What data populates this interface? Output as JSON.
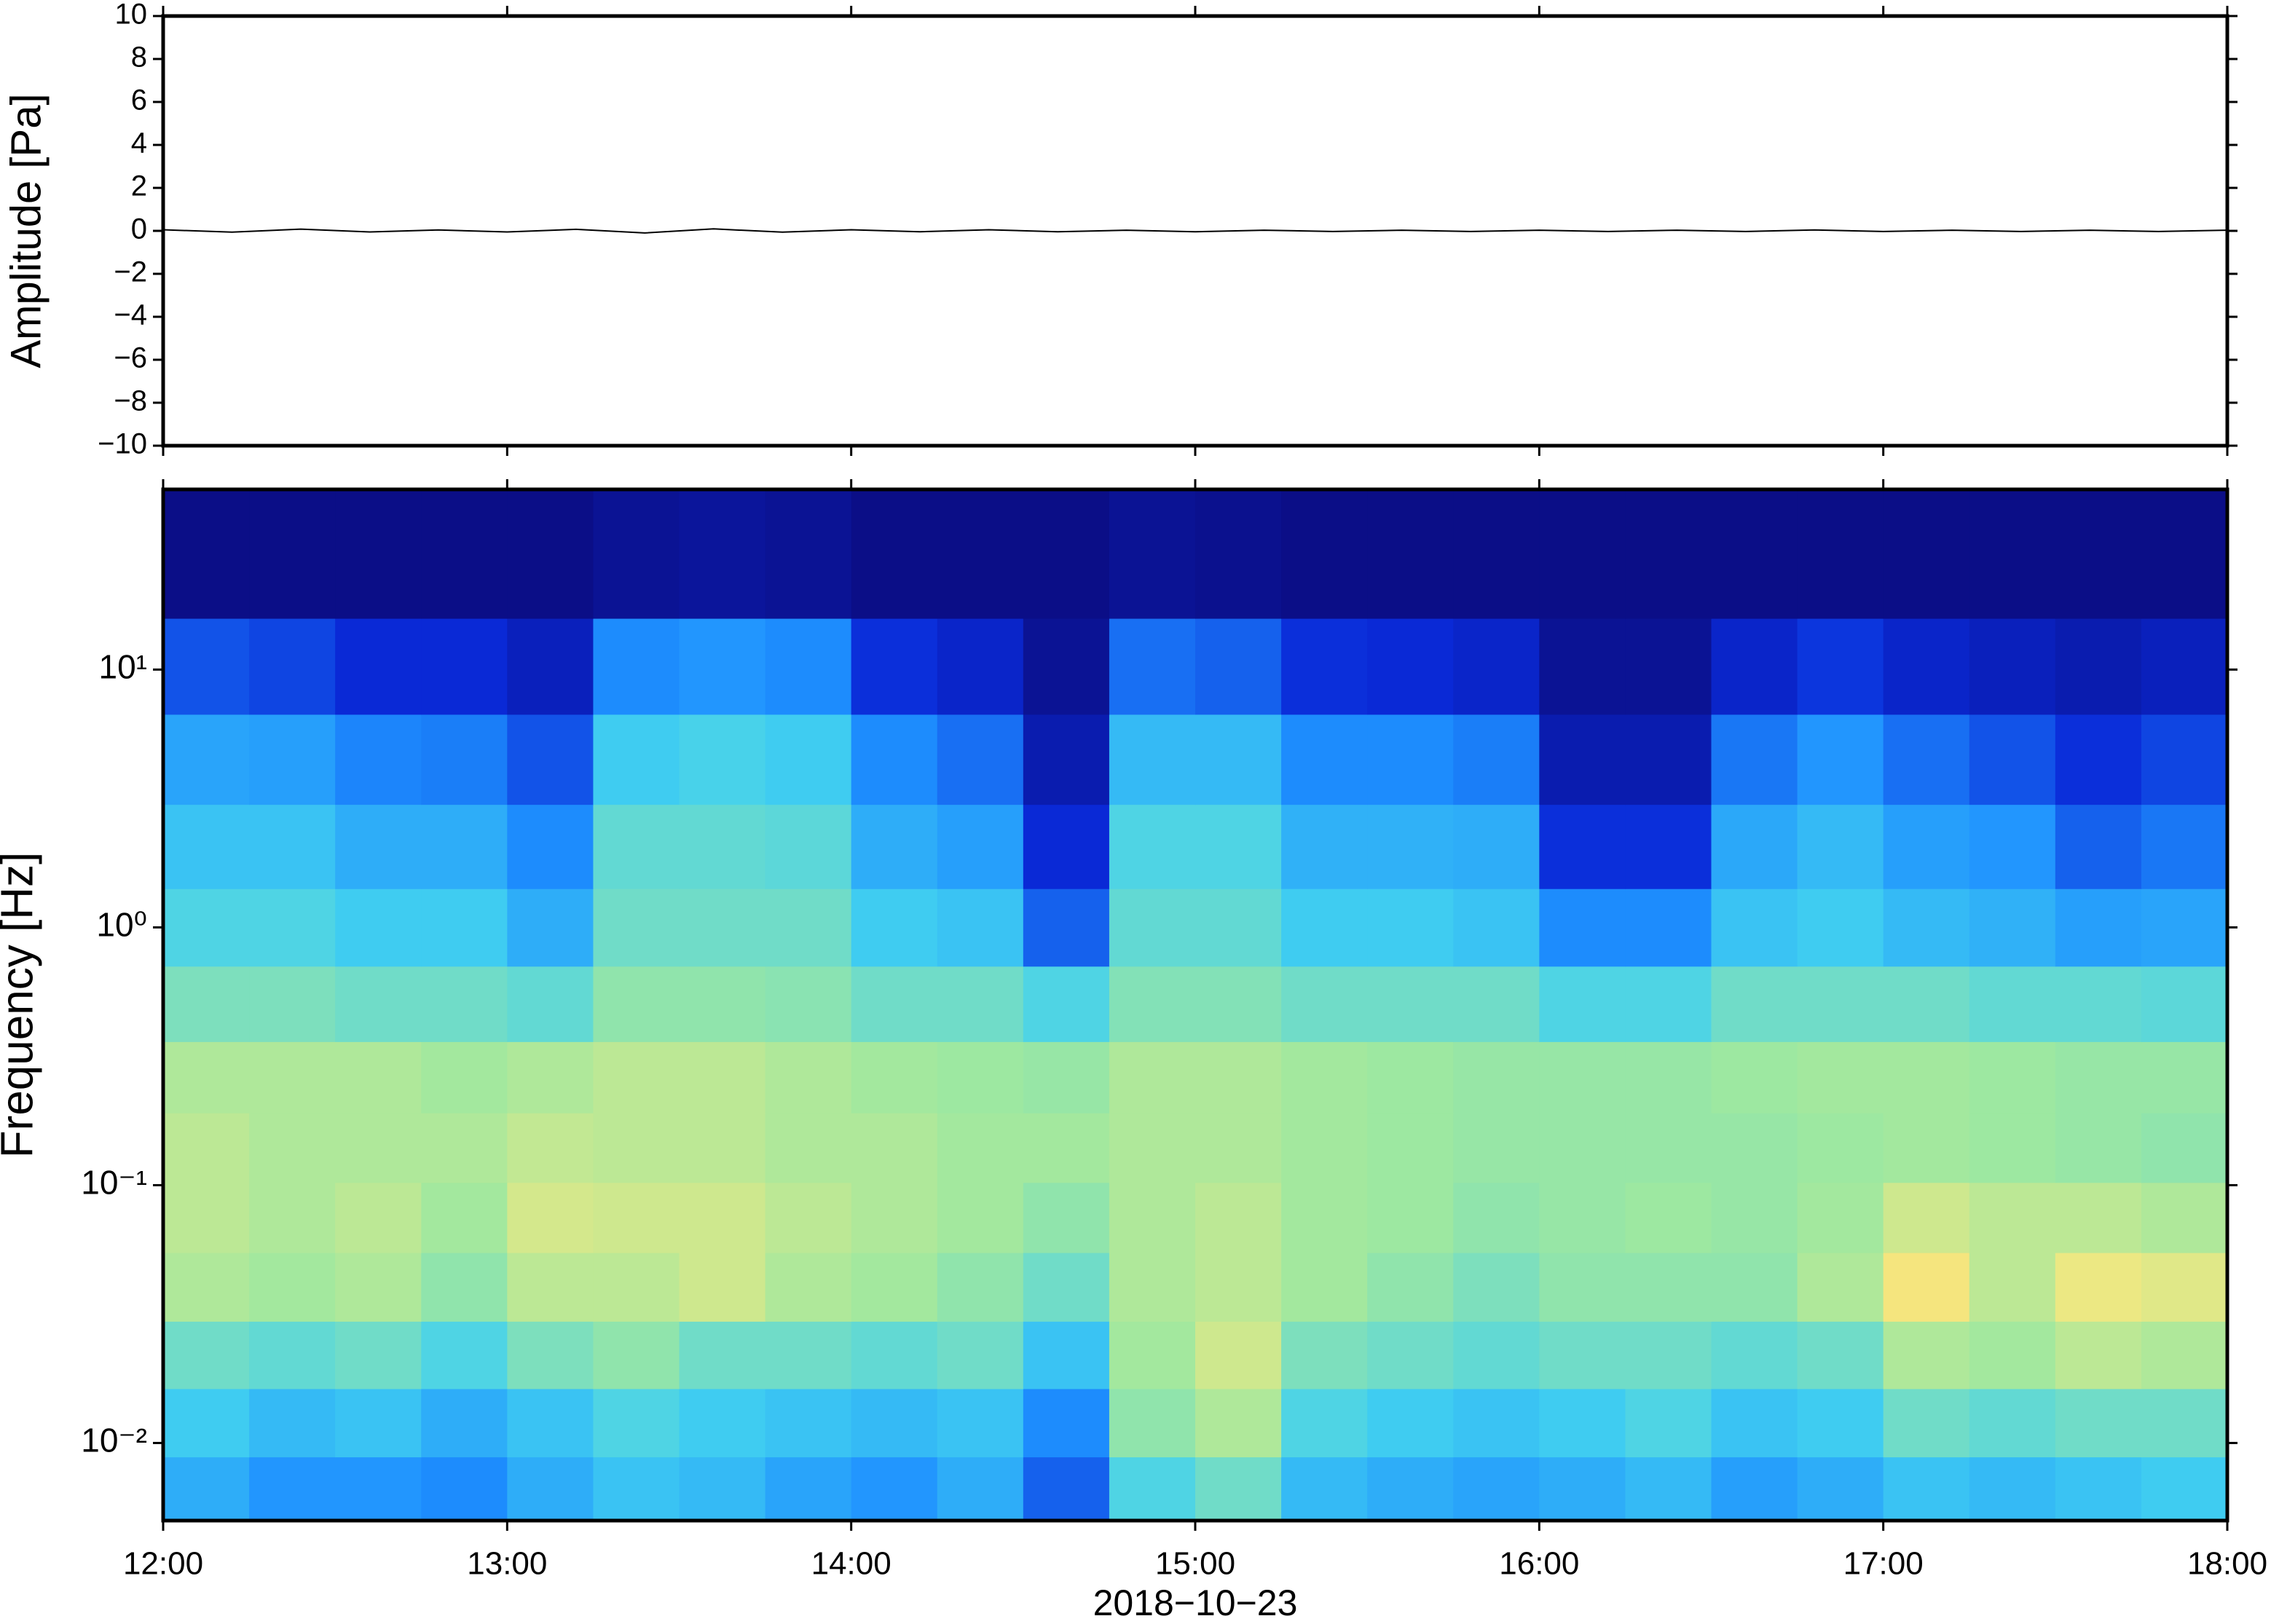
{
  "chart_data": [
    {
      "type": "line",
      "ylabel": "Amplitude [Pa]",
      "xlim": [
        12,
        18
      ],
      "xticks": [
        12,
        13,
        14,
        15,
        16,
        17,
        18
      ],
      "ylim": [
        -10,
        10
      ],
      "yticks": [
        {
          "value": -10,
          "label": "−10"
        },
        {
          "value": -8,
          "label": "−8"
        },
        {
          "value": -6,
          "label": "−6"
        },
        {
          "value": -4,
          "label": "−4"
        },
        {
          "value": -2,
          "label": "−2"
        },
        0,
        2,
        4,
        6,
        8,
        10
      ],
      "x": [
        12,
        12.2,
        12.4,
        12.6,
        12.8,
        13,
        13.2,
        13.4,
        13.6,
        13.8,
        14,
        14.2,
        14.4,
        14.6,
        14.8,
        15,
        15.2,
        15.4,
        15.6,
        15.8,
        16,
        16.2,
        16.4,
        16.6,
        16.8,
        17,
        17.2,
        17.4,
        17.6,
        17.8,
        18
      ],
      "series": [
        {
          "color": "#000000",
          "values": [
            0.05,
            -0.06,
            0.08,
            -0.05,
            0.04,
            -0.05,
            0.07,
            -0.1,
            0.09,
            -0.06,
            0.05,
            -0.04,
            0.05,
            -0.04,
            0.03,
            -0.04,
            0.03,
            -0.03,
            0.03,
            -0.03,
            0.03,
            -0.03,
            0.03,
            -0.03,
            0.04,
            -0.03,
            0.03,
            -0.03,
            0.03,
            -0.03,
            0.03
          ]
        }
      ]
    },
    {
      "type": "heatmap",
      "ylabel": "Frequency [Hz]",
      "xlabel": "2018−10−23",
      "xlim": [
        12,
        18
      ],
      "xticks": [
        {
          "value": 12,
          "label": "12:00"
        },
        {
          "value": 13,
          "label": "13:00"
        },
        {
          "value": 14,
          "label": "14:00"
        },
        {
          "value": 15,
          "label": "15:00"
        },
        {
          "value": 16,
          "label": "16:00"
        },
        {
          "value": 17,
          "label": "17:00"
        },
        {
          "value": 18,
          "label": "18:00"
        }
      ],
      "ylim": [
        0.005,
        50
      ],
      "log_y": true,
      "yticks": [
        {
          "value": 0.01,
          "label": "10⁻²"
        },
        {
          "value": 0.1,
          "label": "10⁻¹"
        },
        {
          "value": 1,
          "label": "10⁰"
        },
        {
          "value": 10,
          "label": "10¹"
        }
      ],
      "colormap": [
        "#0b0a7a",
        "#0a2ad8",
        "#1e90ff",
        "#41d0f0",
        "#9ee8a0",
        "#f5e880",
        "#fca84e",
        "#e83a1c"
      ],
      "x": [
        12.125,
        12.375,
        12.625,
        12.875,
        13.125,
        13.375,
        13.625,
        13.875,
        14.125,
        14.375,
        14.625,
        14.875,
        15.125,
        15.375,
        15.625,
        15.875,
        16.125,
        16.375,
        16.625,
        16.875,
        17.125,
        17.375,
        17.625,
        17.875
      ],
      "y": [
        0.0065,
        0.012,
        0.022,
        0.04,
        0.075,
        0.14,
        0.26,
        0.5,
        1,
        2,
        4.5,
        10,
        25
      ],
      "z": [
        [
          0.35,
          0.3,
          0.3,
          0.28,
          0.35,
          0.4,
          0.38,
          0.33,
          0.3,
          0.35,
          0.22,
          0.45,
          0.5,
          0.38,
          0.35,
          0.33,
          0.35,
          0.38,
          0.32,
          0.35,
          0.4,
          0.38,
          0.4,
          0.42
        ],
        [
          0.42,
          0.38,
          0.4,
          0.35,
          0.4,
          0.45,
          0.42,
          0.4,
          0.38,
          0.4,
          0.28,
          0.55,
          0.6,
          0.45,
          0.42,
          0.4,
          0.42,
          0.45,
          0.4,
          0.42,
          0.5,
          0.48,
          0.5,
          0.5
        ],
        [
          0.5,
          0.48,
          0.5,
          0.45,
          0.52,
          0.55,
          0.5,
          0.5,
          0.48,
          0.5,
          0.4,
          0.58,
          0.65,
          0.52,
          0.5,
          0.48,
          0.5,
          0.5,
          0.48,
          0.5,
          0.6,
          0.58,
          0.62,
          0.6
        ],
        [
          0.6,
          0.58,
          0.6,
          0.55,
          0.62,
          0.62,
          0.65,
          0.6,
          0.58,
          0.55,
          0.5,
          0.6,
          0.62,
          0.58,
          0.55,
          0.52,
          0.55,
          0.55,
          0.55,
          0.6,
          0.72,
          0.62,
          0.7,
          0.68
        ],
        [
          0.62,
          0.6,
          0.62,
          0.58,
          0.66,
          0.65,
          0.65,
          0.62,
          0.6,
          0.58,
          0.55,
          0.6,
          0.62,
          0.58,
          0.57,
          0.55,
          0.56,
          0.57,
          0.56,
          0.58,
          0.65,
          0.62,
          0.62,
          0.6
        ],
        [
          0.62,
          0.6,
          0.6,
          0.6,
          0.63,
          0.62,
          0.62,
          0.6,
          0.6,
          0.58,
          0.58,
          0.6,
          0.6,
          0.58,
          0.57,
          0.56,
          0.56,
          0.56,
          0.56,
          0.57,
          0.58,
          0.57,
          0.56,
          0.55
        ],
        [
          0.6,
          0.6,
          0.6,
          0.58,
          0.6,
          0.62,
          0.62,
          0.6,
          0.58,
          0.57,
          0.56,
          0.6,
          0.6,
          0.58,
          0.57,
          0.56,
          0.56,
          0.56,
          0.57,
          0.58,
          0.58,
          0.57,
          0.56,
          0.56
        ],
        [
          0.52,
          0.52,
          0.5,
          0.5,
          0.48,
          0.55,
          0.55,
          0.54,
          0.5,
          0.5,
          0.45,
          0.53,
          0.53,
          0.5,
          0.5,
          0.5,
          0.45,
          0.45,
          0.5,
          0.5,
          0.5,
          0.48,
          0.48,
          0.47
        ],
        [
          0.45,
          0.45,
          0.42,
          0.42,
          0.35,
          0.5,
          0.5,
          0.5,
          0.42,
          0.4,
          0.22,
          0.48,
          0.48,
          0.42,
          0.42,
          0.4,
          0.28,
          0.28,
          0.4,
          0.42,
          0.38,
          0.36,
          0.32,
          0.33
        ],
        [
          0.4,
          0.4,
          0.35,
          0.35,
          0.28,
          0.48,
          0.48,
          0.47,
          0.35,
          0.32,
          0.14,
          0.45,
          0.45,
          0.36,
          0.36,
          0.35,
          0.15,
          0.15,
          0.34,
          0.38,
          0.32,
          0.3,
          0.22,
          0.25
        ],
        [
          0.33,
          0.32,
          0.27,
          0.26,
          0.2,
          0.42,
          0.44,
          0.42,
          0.28,
          0.24,
          0.08,
          0.38,
          0.38,
          0.28,
          0.28,
          0.26,
          0.08,
          0.08,
          0.25,
          0.3,
          0.24,
          0.2,
          0.15,
          0.18
        ],
        [
          0.2,
          0.18,
          0.14,
          0.14,
          0.1,
          0.28,
          0.3,
          0.28,
          0.15,
          0.12,
          0.04,
          0.24,
          0.22,
          0.15,
          0.14,
          0.12,
          0.04,
          0.04,
          0.12,
          0.16,
          0.12,
          0.1,
          0.08,
          0.1
        ],
        [
          0.02,
          0.02,
          0.02,
          0.02,
          0.02,
          0.04,
          0.05,
          0.04,
          0.02,
          0.02,
          0.02,
          0.04,
          0.03,
          0.02,
          0.02,
          0.02,
          0.02,
          0.02,
          0.02,
          0.02,
          0.02,
          0.02,
          0.02,
          0.02
        ]
      ]
    }
  ]
}
